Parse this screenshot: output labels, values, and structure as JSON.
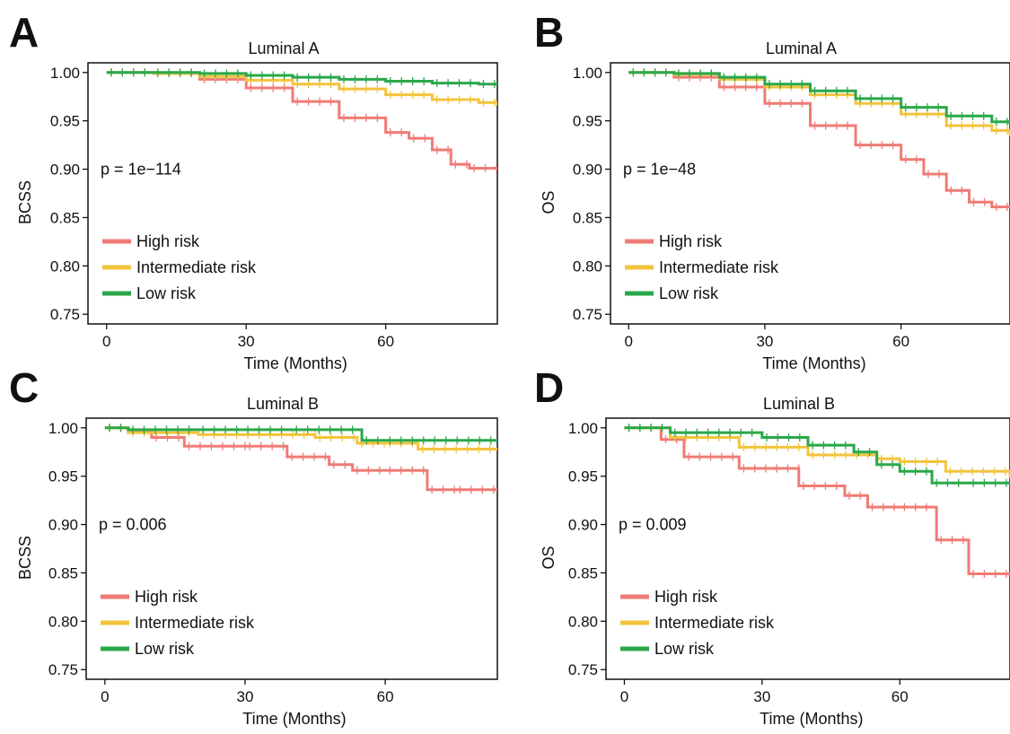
{
  "colors": {
    "high": "#ef7b76",
    "intermediate": "#f2c43c",
    "low": "#2aa84a"
  },
  "chart_data": [
    {
      "panel": "A",
      "type": "line",
      "title": "Luminal A",
      "xlabel": "Time (Months)",
      "ylabel": "BCSS",
      "annotation": "p = 1e−114",
      "xlim": [
        -4,
        84
      ],
      "ylim": [
        0.74,
        1.01
      ],
      "xticks": [
        0,
        30,
        60
      ],
      "yticks": [
        "1.00",
        "0.95",
        "0.90",
        "0.85",
        "0.80",
        "0.75"
      ],
      "legend_position": "bottom-left",
      "series": [
        {
          "name": "High risk",
          "color_key": "high",
          "x": [
            0,
            10,
            20,
            30,
            40,
            50,
            60,
            65,
            70,
            74,
            78,
            84
          ],
          "y": [
            1.0,
            0.999,
            0.993,
            0.984,
            0.97,
            0.953,
            0.938,
            0.932,
            0.92,
            0.905,
            0.901,
            0.901
          ]
        },
        {
          "name": "Intermediate risk",
          "color_key": "intermediate",
          "x": [
            0,
            10,
            20,
            30,
            40,
            50,
            60,
            70,
            80,
            84
          ],
          "y": [
            1.0,
            0.999,
            0.996,
            0.992,
            0.988,
            0.983,
            0.977,
            0.972,
            0.969,
            0.966
          ]
        },
        {
          "name": "Low risk",
          "color_key": "low",
          "x": [
            0,
            10,
            20,
            30,
            40,
            50,
            60,
            70,
            80,
            84
          ],
          "y": [
            1.0,
            1.0,
            0.999,
            0.997,
            0.995,
            0.993,
            0.991,
            0.989,
            0.988,
            0.988
          ]
        }
      ]
    },
    {
      "panel": "B",
      "type": "line",
      "title": "Luminal A",
      "xlabel": "Time (Months)",
      "ylabel": "OS",
      "annotation": "p = 1e−48",
      "xlim": [
        -4,
        84
      ],
      "ylim": [
        0.74,
        1.01
      ],
      "xticks": [
        0,
        30,
        60
      ],
      "yticks": [
        "1.00",
        "0.95",
        "0.90",
        "0.85",
        "0.80",
        "0.75"
      ],
      "legend_position": "bottom-left",
      "series": [
        {
          "name": "High risk",
          "color_key": "high",
          "x": [
            0,
            10,
            20,
            30,
            40,
            50,
            60,
            65,
            70,
            75,
            80,
            84
          ],
          "y": [
            1.0,
            0.995,
            0.985,
            0.968,
            0.945,
            0.925,
            0.91,
            0.895,
            0.878,
            0.866,
            0.861,
            0.861
          ]
        },
        {
          "name": "Intermediate risk",
          "color_key": "intermediate",
          "x": [
            0,
            10,
            20,
            30,
            40,
            50,
            60,
            70,
            80,
            84
          ],
          "y": [
            1.0,
            0.998,
            0.993,
            0.985,
            0.977,
            0.968,
            0.957,
            0.945,
            0.94,
            0.934
          ]
        },
        {
          "name": "Low risk",
          "color_key": "low",
          "x": [
            0,
            10,
            20,
            30,
            40,
            50,
            60,
            70,
            80,
            84
          ],
          "y": [
            1.0,
            0.999,
            0.995,
            0.988,
            0.981,
            0.973,
            0.964,
            0.955,
            0.949,
            0.946
          ]
        }
      ]
    },
    {
      "panel": "C",
      "type": "line",
      "title": "Luminal B",
      "xlabel": "Time (Months)",
      "ylabel": "BCSS",
      "annotation": "p = 0.006",
      "xlim": [
        -4,
        84
      ],
      "ylim": [
        0.74,
        1.01
      ],
      "xticks": [
        0,
        30,
        60
      ],
      "yticks": [
        "1.00",
        "0.95",
        "0.90",
        "0.85",
        "0.80",
        "0.75"
      ],
      "legend_position": "bottom-left",
      "series": [
        {
          "name": "High risk",
          "color_key": "high",
          "x": [
            0,
            5,
            10,
            17,
            30,
            39,
            48,
            53,
            60,
            69,
            75,
            84
          ],
          "y": [
            1.0,
            0.996,
            0.99,
            0.981,
            0.981,
            0.97,
            0.962,
            0.956,
            0.956,
            0.936,
            0.936,
            0.936
          ]
        },
        {
          "name": "Intermediate risk",
          "color_key": "intermediate",
          "x": [
            0,
            5,
            20,
            45,
            54,
            60,
            67,
            84
          ],
          "y": [
            1.0,
            0.995,
            0.993,
            0.99,
            0.984,
            0.984,
            0.978,
            0.978
          ]
        },
        {
          "name": "Low risk",
          "color_key": "low",
          "x": [
            0,
            5,
            20,
            40,
            55,
            60,
            84
          ],
          "y": [
            1.0,
            0.998,
            0.998,
            0.998,
            0.987,
            0.987,
            0.987
          ]
        }
      ]
    },
    {
      "panel": "D",
      "type": "line",
      "title": "Luminal B",
      "xlabel": "Time (Months)",
      "ylabel": "OS",
      "annotation": "p = 0.009",
      "xlim": [
        -4,
        84
      ],
      "ylim": [
        0.74,
        1.01
      ],
      "xticks": [
        0,
        30,
        60
      ],
      "yticks": [
        "1.00",
        "0.95",
        "0.90",
        "0.85",
        "0.80",
        "0.75"
      ],
      "legend_position": "bottom-left",
      "series": [
        {
          "name": "High risk",
          "color_key": "high",
          "x": [
            0,
            8,
            13,
            25,
            38,
            48,
            53,
            60,
            68,
            75,
            84
          ],
          "y": [
            1.0,
            0.988,
            0.97,
            0.958,
            0.94,
            0.93,
            0.918,
            0.918,
            0.884,
            0.849,
            0.849
          ]
        },
        {
          "name": "Intermediate risk",
          "color_key": "intermediate",
          "x": [
            0,
            10,
            25,
            40,
            55,
            60,
            70,
            84
          ],
          "y": [
            1.0,
            0.99,
            0.98,
            0.972,
            0.968,
            0.965,
            0.955,
            0.948
          ]
        },
        {
          "name": "Low risk",
          "color_key": "low",
          "x": [
            0,
            10,
            30,
            40,
            50,
            55,
            60,
            67,
            75,
            84
          ],
          "y": [
            1.0,
            0.995,
            0.99,
            0.982,
            0.975,
            0.962,
            0.955,
            0.943,
            0.943,
            0.943
          ]
        }
      ]
    }
  ]
}
